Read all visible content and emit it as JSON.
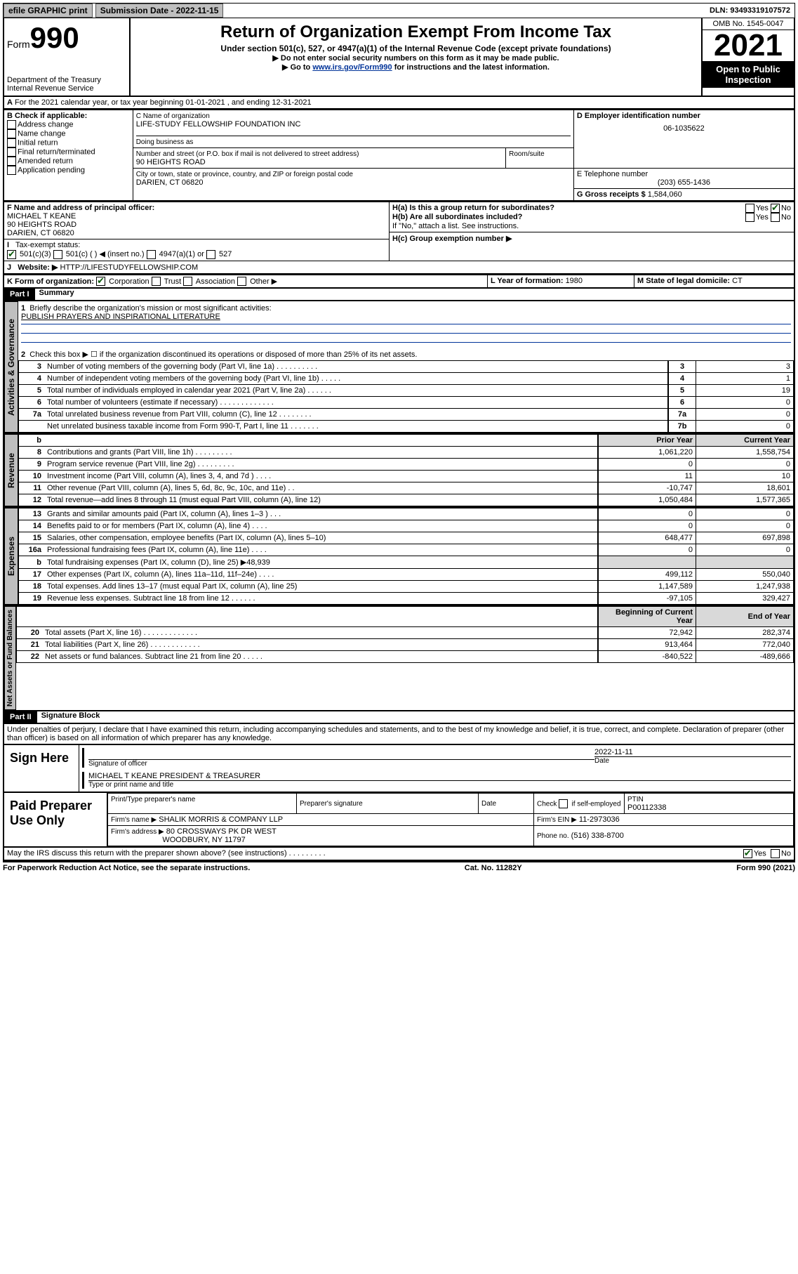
{
  "topbar": {
    "efile": "efile GRAPHIC print",
    "submission_label": "Submission Date - 2022-11-15",
    "dln": "DLN: 93493319107572"
  },
  "header": {
    "form_label": "Form",
    "form_num": "990",
    "dept": "Department of the Treasury",
    "irs": "Internal Revenue Service",
    "title": "Return of Organization Exempt From Income Tax",
    "sub1": "Under section 501(c), 527, or 4947(a)(1) of the Internal Revenue Code (except private foundations)",
    "sub2a": "▶ Do not enter social security numbers on this form as it may be made public.",
    "sub2b_pre": "▶ Go to ",
    "sub2b_link": "www.irs.gov/Form990",
    "sub2b_post": " for instructions and the latest information.",
    "omb": "OMB No. 1545-0047",
    "year": "2021",
    "open": "Open to Public Inspection"
  },
  "line_a": "For the 2021 calendar year, or tax year beginning 01-01-2021   , and ending 12-31-2021",
  "box_b": {
    "label": "B Check if applicable:",
    "opts": [
      "Address change",
      "Name change",
      "Initial return",
      "Final return/terminated",
      "Amended return",
      "Application pending"
    ]
  },
  "box_c": {
    "label": "C Name of organization",
    "name": "LIFE-STUDY FELLOWSHIP FOUNDATION INC",
    "dba_label": "Doing business as",
    "street_label": "Number and street (or P.O. box if mail is not delivered to street address)",
    "room_label": "Room/suite",
    "street": "90 HEIGHTS ROAD",
    "city_label": "City or town, state or province, country, and ZIP or foreign postal code",
    "city": "DARIEN, CT  06820"
  },
  "box_d": {
    "label": "D Employer identification number",
    "val": "06-1035622"
  },
  "box_e": {
    "label": "E Telephone number",
    "val": "(203) 655-1436"
  },
  "box_g": {
    "label": "G Gross receipts $",
    "val": "1,584,060"
  },
  "box_f": {
    "label": "F Name and address of principal officer:",
    "line1": "MICHAEL T KEANE",
    "line2": "90 HEIGHTS ROAD",
    "line3": "DARIEN, CT  06820"
  },
  "box_h": {
    "a": "H(a)  Is this a group return for subordinates?",
    "b": "H(b)  Are all subordinates included?",
    "b_note": "If \"No,\" attach a list. See instructions.",
    "c": "H(c)  Group exemption number ▶"
  },
  "box_i": {
    "label": "Tax-exempt status:",
    "opts": [
      "501(c)(3)",
      "501(c) (  ) ◀ (insert no.)",
      "4947(a)(1) or",
      "527"
    ]
  },
  "box_j": {
    "label": "Website: ▶",
    "val": " HTTP://LIFESTUDYFELLOWSHIP.COM"
  },
  "box_k": {
    "label": "K Form of organization:",
    "opts": [
      "Corporation",
      "Trust",
      "Association",
      "Other ▶"
    ]
  },
  "box_l": {
    "label": "L Year of formation: ",
    "val": "1980"
  },
  "box_m": {
    "label": "M State of legal domicile: ",
    "val": "CT"
  },
  "part1": {
    "hdr": "Part I",
    "title": "Summary",
    "q1": "Briefly describe the organization's mission or most significant activities:",
    "q1v": "PUBLISH PRAYERS AND INSPIRATIONAL LITERATURE",
    "q2": "Check this box ▶ ☐  if the organization discontinued its operations or disposed of more than 25% of its net assets."
  },
  "gov_rows": [
    {
      "n": "3",
      "d": "Number of voting members of the governing body (Part VI, line 1a)  .    .    .    .    .    .    .    .    .    .",
      "box": "3",
      "v": "3"
    },
    {
      "n": "4",
      "d": "Number of independent voting members of the governing body (Part VI, line 1b)   .    .    .    .    .",
      "box": "4",
      "v": "1"
    },
    {
      "n": "5",
      "d": "Total number of individuals employed in calendar year 2021 (Part V, line 2a)   .    .    .    .    .    .",
      "box": "5",
      "v": "19"
    },
    {
      "n": "6",
      "d": "Total number of volunteers (estimate if necessary)   .    .    .    .    .    .    .    .    .    .    .    .    .",
      "box": "6",
      "v": "0"
    },
    {
      "n": "7a",
      "d": "Total unrelated business revenue from Part VIII, column (C), line 12   .    .    .    .    .    .    .    .",
      "box": "7a",
      "v": "0"
    },
    {
      "n": "",
      "d": "Net unrelated business taxable income from Form 990-T, Part I, line 11   .    .    .    .    .    .    .",
      "box": "7b",
      "v": "0"
    }
  ],
  "col_hdr": {
    "b": "b",
    "prior": "Prior Year",
    "current": "Current Year"
  },
  "rev_rows": [
    {
      "n": "8",
      "d": "Contributions and grants (Part VIII, line 1h)   .    .    .    .    .    .    .    .    .",
      "p": "1,061,220",
      "c": "1,558,754"
    },
    {
      "n": "9",
      "d": "Program service revenue (Part VIII, line 2g)   .    .    .    .    .    .    .    .    .",
      "p": "0",
      "c": "0"
    },
    {
      "n": "10",
      "d": "Investment income (Part VIII, column (A), lines 3, 4, and 7d )   .    .    .    .",
      "p": "11",
      "c": "10"
    },
    {
      "n": "11",
      "d": "Other revenue (Part VIII, column (A), lines 5, 6d, 8c, 9c, 10c, and 11e)   .    .",
      "p": "-10,747",
      "c": "18,601"
    },
    {
      "n": "12",
      "d": "Total revenue—add lines 8 through 11 (must equal Part VIII, column (A), line 12)",
      "p": "1,050,484",
      "c": "1,577,365"
    }
  ],
  "exp_rows": [
    {
      "n": "13",
      "d": "Grants and similar amounts paid (Part IX, column (A), lines 1–3 )   .    .    .",
      "p": "0",
      "c": "0"
    },
    {
      "n": "14",
      "d": "Benefits paid to or for members (Part IX, column (A), line 4)   .    .    .    .",
      "p": "0",
      "c": "0"
    },
    {
      "n": "15",
      "d": "Salaries, other compensation, employee benefits (Part IX, column (A), lines 5–10)",
      "p": "648,477",
      "c": "697,898"
    },
    {
      "n": "16a",
      "d": "Professional fundraising fees (Part IX, column (A), line 11e)   .    .    .    .",
      "p": "0",
      "c": "0"
    },
    {
      "n": "b",
      "d": "Total fundraising expenses (Part IX, column (D), line 25) ▶48,939",
      "p": "",
      "c": "",
      "shade": true
    },
    {
      "n": "17",
      "d": "Other expenses (Part IX, column (A), lines 11a–11d, 11f–24e)   .    .    .    .",
      "p": "499,112",
      "c": "550,040"
    },
    {
      "n": "18",
      "d": "Total expenses. Add lines 13–17 (must equal Part IX, column (A), line 25)",
      "p": "1,147,589",
      "c": "1,247,938"
    },
    {
      "n": "19",
      "d": "Revenue less expenses. Subtract line 18 from line 12   .    .    .    .    .    .",
      "p": "-97,105",
      "c": "329,427"
    }
  ],
  "na_hdr": {
    "b": "Beginning of Current Year",
    "e": "End of Year"
  },
  "na_rows": [
    {
      "n": "20",
      "d": "Total assets (Part X, line 16)   .    .    .    .    .    .    .    .    .    .    .    .    .",
      "p": "72,942",
      "c": "282,374"
    },
    {
      "n": "21",
      "d": "Total liabilities (Part X, line 26)   .    .    .    .    .    .    .    .    .    .    .    .",
      "p": "913,464",
      "c": "772,040"
    },
    {
      "n": "22",
      "d": "Net assets or fund balances. Subtract line 21 from line 20   .    .    .    .    .",
      "p": "-840,522",
      "c": "-489,666"
    }
  ],
  "part2": {
    "hdr": "Part II",
    "title": "Signature Block",
    "decl": "Under penalties of perjury, I declare that I have examined this return, including accompanying schedules and statements, and to the best of my knowledge and belief, it is true, correct, and complete. Declaration of preparer (other than officer) is based on all information of which preparer has any knowledge."
  },
  "sign": {
    "here": "Sign Here",
    "sig_officer": "Signature of officer",
    "date": "Date",
    "date_val": "2022-11-11",
    "name": "MICHAEL T KEANE  PRESIDENT & TREASURER",
    "name_lbl": "Type or print name and title"
  },
  "paid": {
    "label": "Paid Preparer Use Only",
    "c1": "Print/Type preparer's name",
    "c2": "Preparer's signature",
    "c3": "Date",
    "c4a": "Check",
    "c4b": "if self-employed",
    "c5": "PTIN",
    "ptin": "P00112338",
    "firm_name_lbl": "Firm's name    ▶",
    "firm_name": "SHALIK MORRIS & COMPANY LLP",
    "firm_ein_lbl": "Firm's EIN ▶",
    "firm_ein": "11-2973036",
    "firm_addr_lbl": "Firm's address ▶",
    "firm_addr1": "80 CROSSWAYS PK DR WEST",
    "firm_addr2": "WOODBURY, NY  11797",
    "phone_lbl": "Phone no.",
    "phone": "(516) 338-8700"
  },
  "may_discuss": "May the IRS discuss this return with the preparer shown above? (see instructions)   .    .    .    .    .    .    .    .    .",
  "yes": "Yes",
  "no": "No",
  "footer": {
    "l": "For Paperwork Reduction Act Notice, see the separate instructions.",
    "m": "Cat. No. 11282Y",
    "r": "Form 990 (2021)"
  },
  "tabs": {
    "gov": "Activities & Governance",
    "rev": "Revenue",
    "exp": "Expenses",
    "na": "Net Assets or Fund Balances"
  }
}
